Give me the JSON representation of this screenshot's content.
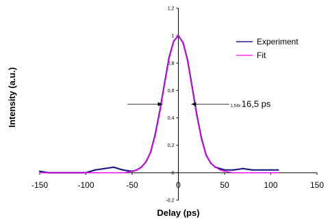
{
  "chart_data": {
    "type": "line",
    "xlabel": "Delay (ps)",
    "ylabel": "Intensity (a.u.)",
    "xlim": [
      -150,
      150
    ],
    "ylim": [
      -0.2,
      1.2
    ],
    "x_ticks": [
      "-150",
      "-100",
      "-50",
      "0",
      "50",
      "100",
      "150"
    ],
    "y_ticks": [
      "-0,2",
      "0",
      "0,2",
      "0,4",
      "0,6",
      "0,8",
      "1",
      "1,2"
    ],
    "x_tick_values": [
      -150,
      -100,
      -50,
      0,
      50,
      100,
      150
    ],
    "y_tick_values": [
      -0.2,
      0,
      0.2,
      0.4,
      0.6,
      0.8,
      1.0,
      1.2
    ],
    "grid": false,
    "legend_position": "top-right",
    "series": [
      {
        "name": "Experiment",
        "color": "#1a1a80",
        "x": [
          -150,
          -140,
          -130,
          -120,
          -110,
          -100,
          -90,
          -80,
          -70,
          -60,
          -50,
          -45,
          -40,
          -35,
          -30,
          -25,
          -20,
          -15,
          -10,
          -5,
          0,
          5,
          10,
          15,
          20,
          25,
          30,
          35,
          40,
          45,
          50,
          60,
          70,
          80,
          90,
          100,
          108
        ],
        "y": [
          0.01,
          0.0,
          0.0,
          0.0,
          0.0,
          0.0,
          0.02,
          0.03,
          0.04,
          0.02,
          0.01,
          0.02,
          0.04,
          0.08,
          0.15,
          0.28,
          0.45,
          0.65,
          0.84,
          0.96,
          1.0,
          0.95,
          0.82,
          0.62,
          0.42,
          0.25,
          0.13,
          0.07,
          0.04,
          0.03,
          0.02,
          0.02,
          0.03,
          0.02,
          0.02,
          0.02,
          0.02
        ]
      },
      {
        "name": "Fit",
        "color": "#ff00ff",
        "x": [
          -150,
          -100,
          -60,
          -50,
          -45,
          -40,
          -35,
          -30,
          -25,
          -20,
          -15,
          -10,
          -5,
          0,
          5,
          10,
          15,
          20,
          25,
          30,
          35,
          40,
          45,
          50,
          60,
          100,
          108
        ],
        "y": [
          0.0,
          0.0,
          0.0,
          0.01,
          0.02,
          0.04,
          0.08,
          0.15,
          0.27,
          0.44,
          0.64,
          0.83,
          0.96,
          1.0,
          0.95,
          0.81,
          0.61,
          0.41,
          0.24,
          0.13,
          0.07,
          0.04,
          0.02,
          0.01,
          0.0,
          0.0,
          0.0
        ]
      }
    ],
    "annotation": {
      "prefix": "1,54x",
      "value": "16,5 ps",
      "y": 0.5,
      "arrow_left_x": [
        -55,
        -17
      ],
      "arrow_right_x": [
        14,
        55
      ]
    }
  }
}
